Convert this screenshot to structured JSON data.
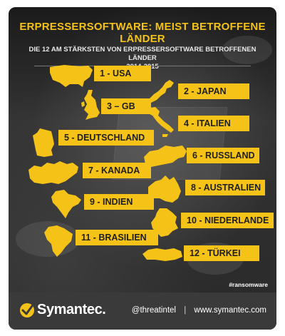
{
  "header": {
    "title": "ERPRESSERSOFTWARE: MEIST BETROFFENE LÄNDER",
    "subtitle_line1": "DIE 12 AM STÄRKSTEN VON ERPRESSERSOFTWARE BETROFFENEN LÄNDER",
    "subtitle_line2": "2014-2015"
  },
  "countries": [
    {
      "rank": 1,
      "label": "1 - USA",
      "icon": "usa-map-icon"
    },
    {
      "rank": 2,
      "label": "2 - JAPAN",
      "icon": "japan-map-icon"
    },
    {
      "rank": 3,
      "label": "3 – GB",
      "icon": "gb-map-icon"
    },
    {
      "rank": 4,
      "label": "4 - ITALIEN",
      "icon": "italy-map-icon"
    },
    {
      "rank": 5,
      "label": "5 - DEUTSCHLAND",
      "icon": "germany-map-icon"
    },
    {
      "rank": 6,
      "label": "6 - RUSSLAND",
      "icon": "russia-map-icon"
    },
    {
      "rank": 7,
      "label": "7 - KANADA",
      "icon": "canada-map-icon"
    },
    {
      "rank": 8,
      "label": "8 - AUSTRALIEN",
      "icon": "australia-map-icon"
    },
    {
      "rank": 9,
      "label": "9 - INDIEN",
      "icon": "india-map-icon"
    },
    {
      "rank": 10,
      "label": "10 - NIEDERLANDE",
      "icon": "netherlands-map-icon"
    },
    {
      "rank": 11,
      "label": "11 - BRASILIEN",
      "icon": "brazil-map-icon"
    },
    {
      "rank": 12,
      "label": "12 - TÜRKEI",
      "icon": "turkey-map-icon"
    }
  ],
  "hashtag": "#ransomware",
  "footer": {
    "brand": "Symantec.",
    "handle": "@threatintel",
    "separator": "|",
    "website": "www.symantec.com"
  },
  "colors": {
    "accent": "#f5c318",
    "background": "#2a2a2a",
    "footer": "#3a3a3a",
    "text": "#ffffff"
  }
}
